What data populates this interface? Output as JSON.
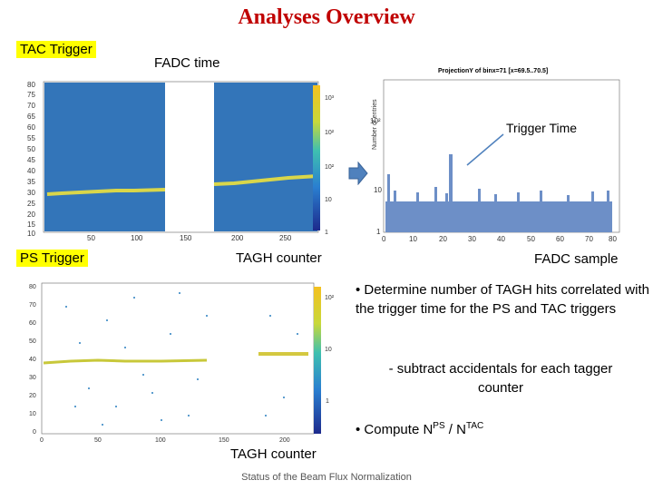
{
  "title": "Analyses Overview",
  "tags": {
    "tac": "TAC  Trigger",
    "ps": "PS  Trigger"
  },
  "labels": {
    "fadc_time": "FADC time",
    "tagh_counter_top": "TAGH counter",
    "fadc_sample": "FADC sample",
    "tagh_counter_bottom": "TAGH counter",
    "trigger_time": "Trigger Time"
  },
  "hist": {
    "title": "ProjectionY of binx=71 [x=69.5..70.5]",
    "ylabel": "Number of entries",
    "x_ticks": [
      "0",
      "10",
      "20",
      "30",
      "40",
      "50",
      "60",
      "70",
      "80"
    ],
    "y_ticks": [
      "10²",
      "10",
      "1"
    ]
  },
  "top_map": {
    "y_ticks": [
      "80",
      "75",
      "70",
      "65",
      "60",
      "55",
      "50",
      "45",
      "40",
      "35",
      "30",
      "25",
      "20",
      "15",
      "10"
    ],
    "x_ticks": [
      "50",
      "100",
      "150",
      "200",
      "250"
    ],
    "z_ticks": [
      "10³",
      "10²",
      "10²",
      "10",
      "1"
    ]
  },
  "bottom_map": {
    "y_ticks": [
      "80",
      "70",
      "60",
      "50",
      "40",
      "30",
      "20",
      "10",
      "0"
    ],
    "x_ticks": [
      "0",
      "50",
      "100",
      "150",
      "200"
    ],
    "z_ticks": [
      "10²",
      "10",
      "1"
    ]
  },
  "bullets": {
    "b1": "• Determine number of TAGH hits correlated with the trigger time for the PS and TAC triggers",
    "b2": "- subtract accidentals for each tagger counter",
    "b3_prefix": "• Compute  N",
    "b3_sup1": "PS",
    "b3_mid": " / N",
    "b3_sup2": "TAC"
  },
  "footer": "Status of the Beam Flux Normalization",
  "colors": {
    "title": "#c00000",
    "tag_bg": "#ffff00",
    "map_bg": "#2a5ea8",
    "hist_fill": "#6d8fc7"
  }
}
